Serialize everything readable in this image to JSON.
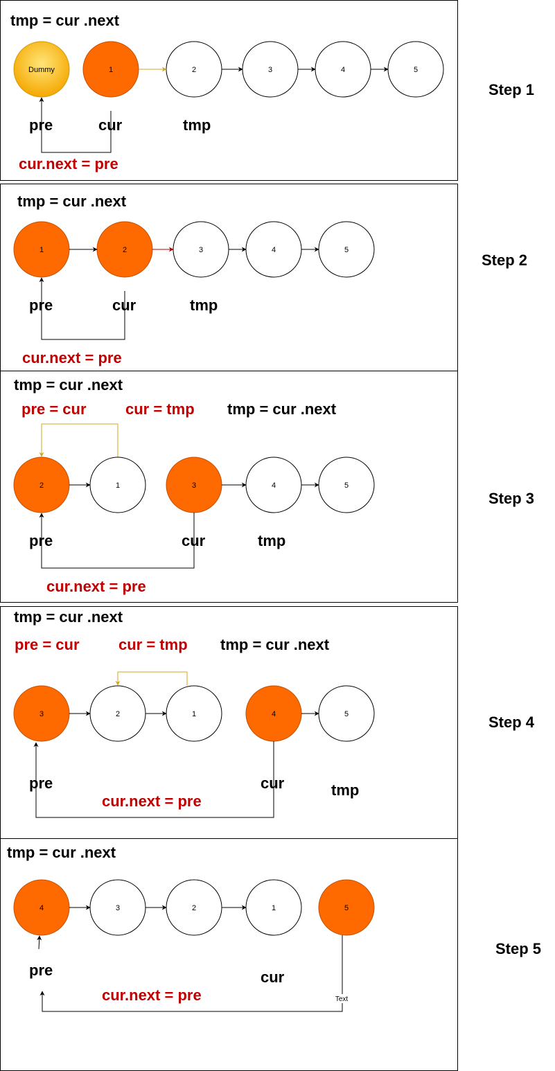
{
  "steps": [
    {
      "step_label": "Step 1",
      "header": "tmp = cur .next",
      "nodes": [
        "Dummy",
        "1",
        "2",
        "3",
        "4",
        "5"
      ],
      "pointers": {
        "pre": "pre",
        "cur": "cur",
        "tmp": "tmp"
      },
      "action": "cur.next = pre"
    },
    {
      "step_label": "Step 2",
      "header": "tmp = cur .next",
      "nodes": [
        "1",
        "2",
        "3",
        "4",
        "5"
      ],
      "pointers": {
        "pre": "pre",
        "cur": "cur",
        "tmp": "tmp"
      },
      "action": "cur.next = pre"
    },
    {
      "step_label": "Step 3",
      "header": "tmp = cur .next",
      "updates": [
        "pre = cur",
        "cur = tmp",
        "tmp = cur .next"
      ],
      "nodes": [
        "2",
        "1",
        "3",
        "4",
        "5"
      ],
      "pointers": {
        "pre": "pre",
        "cur": "cur",
        "tmp": "tmp"
      },
      "action": "cur.next = pre"
    },
    {
      "step_label": "Step 4",
      "header": "tmp = cur .next",
      "updates": [
        "pre = cur",
        "cur = tmp",
        "tmp = cur .next"
      ],
      "nodes": [
        "3",
        "2",
        "1",
        "4",
        "5"
      ],
      "pointers": {
        "pre": "pre",
        "cur": "cur",
        "tmp": "tmp"
      },
      "action": "cur.next = pre"
    },
    {
      "step_label": "Step 5",
      "header": "tmp = cur .next",
      "nodes": [
        "4",
        "3",
        "2",
        "1",
        "5"
      ],
      "pointers": {
        "pre": "pre",
        "cur": "cur"
      },
      "action": "cur.next = pre",
      "edge_label": "Text"
    }
  ],
  "colors": {
    "active_node": "#ff6a00",
    "dummy_node": "#ffc107",
    "action_text": "#c00000",
    "update_arrow": "#d6a520"
  }
}
